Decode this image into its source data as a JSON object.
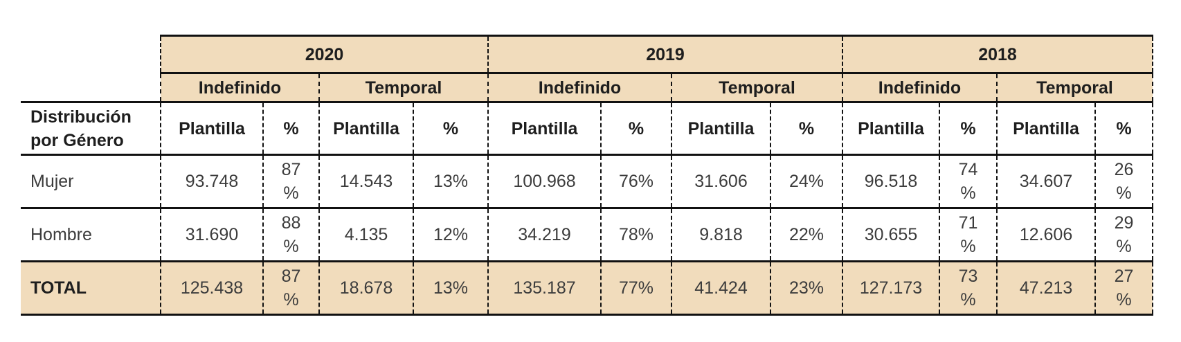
{
  "table": {
    "corner_label": "Distribución por Género",
    "years": [
      "2020",
      "2019",
      "2018"
    ],
    "contract_types": [
      "Indefinido",
      "Temporal"
    ],
    "column_headers": [
      "Plantilla",
      "%"
    ],
    "rows": [
      {
        "label": "Mujer",
        "values": [
          "93.748",
          "87 %",
          "14.543",
          "13%",
          "100.968",
          "76%",
          "31.606",
          "24%",
          "96.518",
          "74 %",
          "34.607",
          "26 %"
        ]
      },
      {
        "label": "Hombre",
        "values": [
          "31.690",
          "88 %",
          "4.135",
          "12%",
          "34.219",
          "78%",
          "9.818",
          "22%",
          "30.655",
          "71 %",
          "12.606",
          "29 %"
        ]
      },
      {
        "label": "TOTAL",
        "values": [
          "125.438",
          "87 %",
          "18.678",
          "13%",
          "135.187",
          "77%",
          "41.424",
          "23%",
          "127.173",
          "73 %",
          "47.213",
          "27 %"
        ],
        "total": true
      }
    ]
  },
  "colors": {
    "header_fill": "#f1dcbc",
    "border": "#111111"
  }
}
